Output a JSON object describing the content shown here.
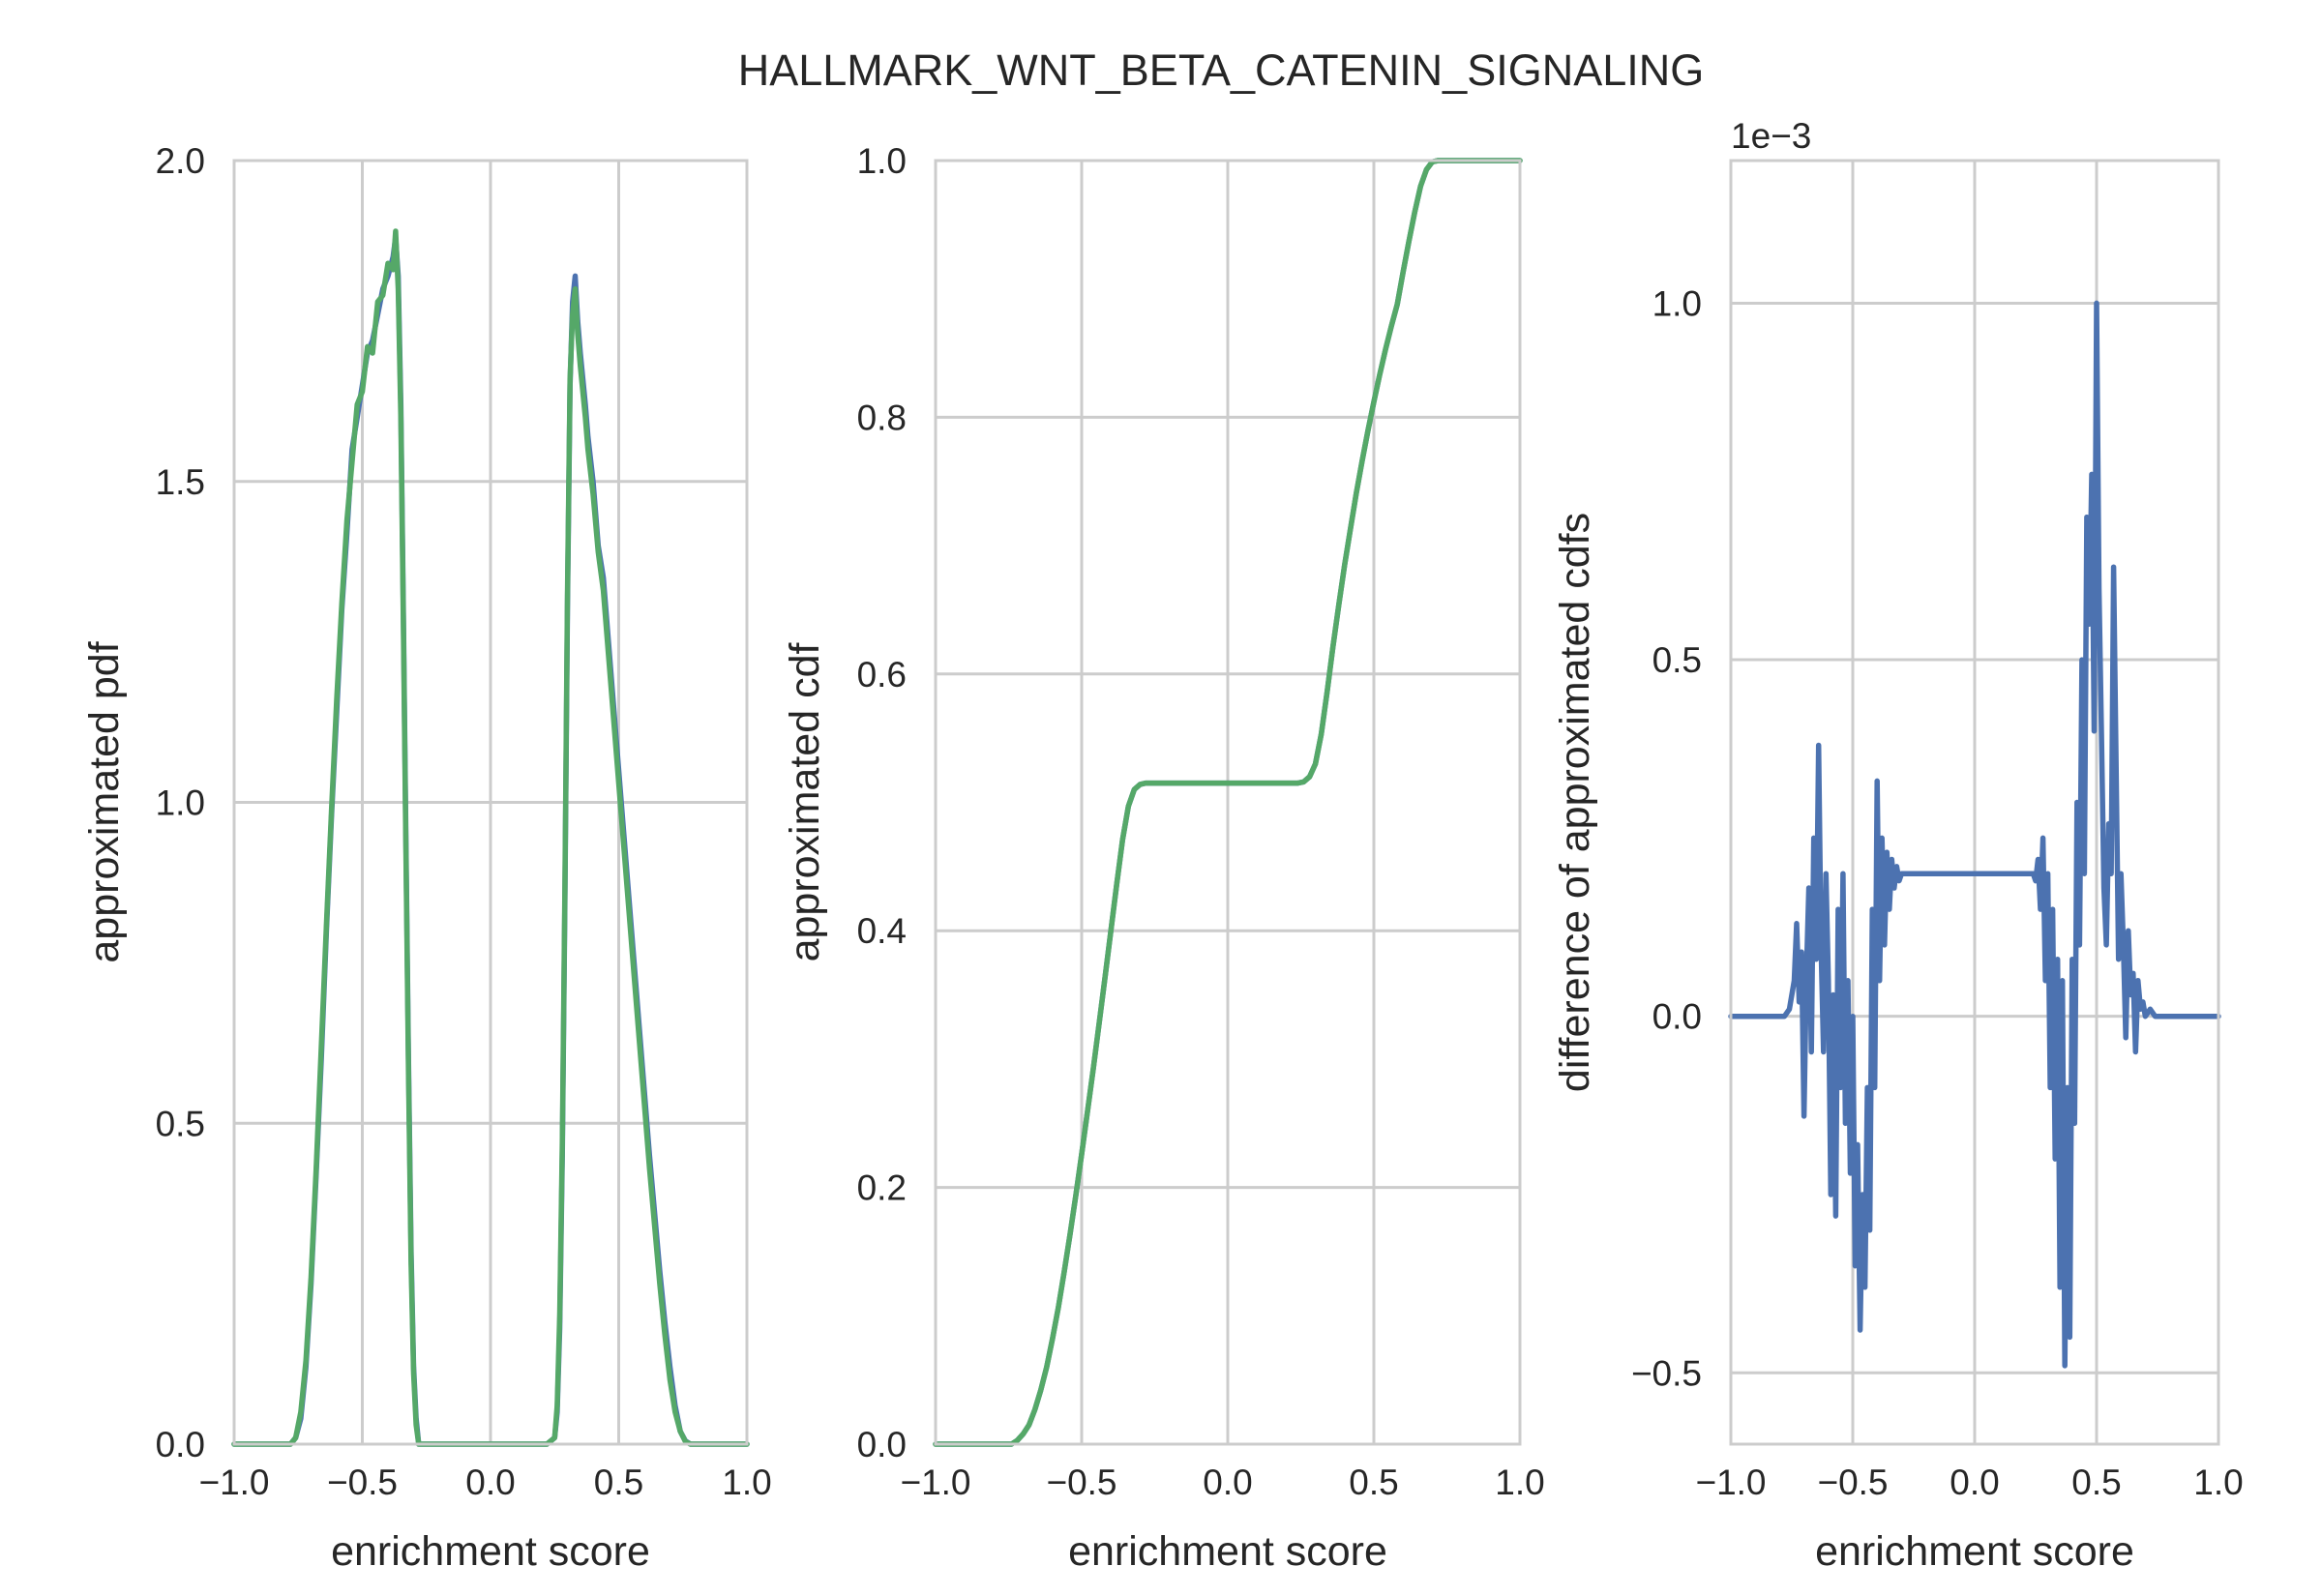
{
  "figure": {
    "title": "HALLMARK_WNT_BETA_CATENIN_SIGNALING"
  },
  "colors": {
    "blue": "#4c72b0",
    "green": "#55a868",
    "grid": "#cccccc",
    "text": "#262626"
  },
  "chart_data": [
    {
      "type": "line",
      "xlabel": "enrichment score",
      "ylabel": "approximated pdf",
      "xlim": [
        -1.0,
        1.0
      ],
      "ylim": [
        0.0,
        2.0
      ],
      "xticks": [
        -1.0,
        -0.5,
        0.0,
        0.5,
        1.0
      ],
      "xtick_labels": [
        "−1.0",
        "−0.5",
        "0.0",
        "0.5",
        "1.0"
      ],
      "yticks": [
        0.0,
        0.5,
        1.0,
        1.5,
        2.0
      ],
      "ytick_labels": [
        "0.0",
        "0.5",
        "1.0",
        "1.5",
        "2.0"
      ],
      "grid": true,
      "series": [
        {
          "color": "#4c72b0",
          "x": [
            -1.0,
            -0.78,
            -0.76,
            -0.74,
            -0.72,
            -0.7,
            -0.68,
            -0.66,
            -0.64,
            -0.62,
            -0.6,
            -0.58,
            -0.56,
            -0.54,
            -0.52,
            -0.5,
            -0.48,
            -0.46,
            -0.44,
            -0.42,
            -0.4,
            -0.38,
            -0.37,
            -0.36,
            -0.35,
            -0.34,
            -0.33,
            -0.32,
            -0.31,
            -0.3,
            -0.29,
            -0.28,
            -0.27,
            -0.26,
            -0.25,
            -0.22,
            0.0,
            0.22,
            0.25,
            0.26,
            0.27,
            0.28,
            0.29,
            0.3,
            0.31,
            0.32,
            0.33,
            0.34,
            0.35,
            0.36,
            0.37,
            0.38,
            0.4,
            0.42,
            0.44,
            0.46,
            0.48,
            0.5,
            0.52,
            0.54,
            0.56,
            0.58,
            0.6,
            0.62,
            0.64,
            0.66,
            0.68,
            0.7,
            0.72,
            0.74,
            0.76,
            0.78,
            1.0
          ],
          "y": [
            0.0,
            0.0,
            0.01,
            0.04,
            0.12,
            0.25,
            0.42,
            0.6,
            0.8,
            0.98,
            1.14,
            1.3,
            1.42,
            1.55,
            1.6,
            1.65,
            1.7,
            1.72,
            1.76,
            1.8,
            1.82,
            1.85,
            1.88,
            1.82,
            1.62,
            1.3,
            0.95,
            0.6,
            0.3,
            0.12,
            0.04,
            0.0,
            0.0,
            0.0,
            0.0,
            0.0,
            0.0,
            0.0,
            0.01,
            0.05,
            0.18,
            0.45,
            0.85,
            1.3,
            1.65,
            1.78,
            1.82,
            1.75,
            1.7,
            1.66,
            1.62,
            1.57,
            1.5,
            1.4,
            1.35,
            1.25,
            1.15,
            1.05,
            0.95,
            0.85,
            0.75,
            0.65,
            0.55,
            0.45,
            0.36,
            0.27,
            0.19,
            0.12,
            0.06,
            0.02,
            0.005,
            0.0,
            0.0
          ]
        },
        {
          "color": "#55a868",
          "x": [
            -1.0,
            -0.78,
            -0.76,
            -0.74,
            -0.72,
            -0.7,
            -0.68,
            -0.66,
            -0.64,
            -0.62,
            -0.6,
            -0.58,
            -0.56,
            -0.54,
            -0.52,
            -0.5,
            -0.48,
            -0.46,
            -0.44,
            -0.42,
            -0.4,
            -0.38,
            -0.37,
            -0.36,
            -0.35,
            -0.34,
            -0.33,
            -0.32,
            -0.31,
            -0.3,
            -0.29,
            -0.28,
            -0.27,
            -0.26,
            -0.25,
            -0.22,
            0.0,
            0.22,
            0.25,
            0.26,
            0.27,
            0.28,
            0.29,
            0.3,
            0.31,
            0.32,
            0.33,
            0.34,
            0.35,
            0.36,
            0.37,
            0.38,
            0.4,
            0.42,
            0.44,
            0.46,
            0.48,
            0.5,
            0.52,
            0.54,
            0.56,
            0.58,
            0.6,
            0.62,
            0.64,
            0.66,
            0.68,
            0.7,
            0.72,
            0.74,
            0.76,
            0.78,
            1.0
          ],
          "y": [
            0.0,
            0.0,
            0.01,
            0.05,
            0.13,
            0.26,
            0.43,
            0.62,
            0.81,
            0.99,
            1.16,
            1.31,
            1.44,
            1.53,
            1.62,
            1.64,
            1.71,
            1.7,
            1.78,
            1.79,
            1.84,
            1.83,
            1.89,
            1.8,
            1.6,
            1.28,
            0.93,
            0.58,
            0.28,
            0.11,
            0.03,
            0.0,
            0.0,
            0.0,
            0.0,
            0.0,
            0.0,
            0.0,
            0.01,
            0.06,
            0.2,
            0.47,
            0.87,
            1.32,
            1.66,
            1.76,
            1.8,
            1.73,
            1.68,
            1.64,
            1.6,
            1.55,
            1.48,
            1.39,
            1.33,
            1.23,
            1.13,
            1.03,
            0.93,
            0.83,
            0.73,
            0.63,
            0.53,
            0.43,
            0.34,
            0.25,
            0.17,
            0.1,
            0.05,
            0.02,
            0.004,
            0.0,
            0.0
          ]
        }
      ]
    },
    {
      "type": "line",
      "xlabel": "enrichment score",
      "ylabel": "approximated cdf",
      "xlim": [
        -1.0,
        1.0
      ],
      "ylim": [
        0.0,
        1.0
      ],
      "xticks": [
        -1.0,
        -0.5,
        0.0,
        0.5,
        1.0
      ],
      "xtick_labels": [
        "−1.0",
        "−0.5",
        "0.0",
        "0.5",
        "1.0"
      ],
      "yticks": [
        0.0,
        0.2,
        0.4,
        0.6,
        0.8,
        1.0
      ],
      "ytick_labels": [
        "0.0",
        "0.2",
        "0.4",
        "0.6",
        "0.8",
        "1.0"
      ],
      "grid": true,
      "series": [
        {
          "color": "#4c72b0",
          "x": [
            -1.0,
            -0.74,
            -0.72,
            -0.7,
            -0.68,
            -0.66,
            -0.64,
            -0.62,
            -0.6,
            -0.58,
            -0.56,
            -0.54,
            -0.52,
            -0.5,
            -0.48,
            -0.46,
            -0.44,
            -0.42,
            -0.4,
            -0.38,
            -0.36,
            -0.34,
            -0.32,
            -0.3,
            -0.28,
            -0.26,
            -0.24,
            0.0,
            0.24,
            0.26,
            0.28,
            0.3,
            0.32,
            0.34,
            0.36,
            0.38,
            0.4,
            0.42,
            0.44,
            0.46,
            0.48,
            0.5,
            0.52,
            0.54,
            0.56,
            0.58,
            0.6,
            0.62,
            0.64,
            0.66,
            0.68,
            0.7,
            0.72,
            1.0
          ],
          "y": [
            0.0,
            0.0,
            0.003,
            0.008,
            0.015,
            0.027,
            0.042,
            0.06,
            0.082,
            0.106,
            0.134,
            0.163,
            0.194,
            0.226,
            0.259,
            0.293,
            0.328,
            0.364,
            0.4,
            0.436,
            0.471,
            0.497,
            0.51,
            0.514,
            0.515,
            0.515,
            0.515,
            0.515,
            0.515,
            0.516,
            0.52,
            0.53,
            0.553,
            0.586,
            0.621,
            0.654,
            0.685,
            0.713,
            0.741,
            0.766,
            0.79,
            0.812,
            0.833,
            0.853,
            0.871,
            0.888,
            0.913,
            0.937,
            0.96,
            0.98,
            0.993,
            0.999,
            1.0,
            1.0
          ]
        },
        {
          "color": "#55a868",
          "x": [
            -1.0,
            -0.74,
            -0.72,
            -0.7,
            -0.68,
            -0.66,
            -0.64,
            -0.62,
            -0.6,
            -0.58,
            -0.56,
            -0.54,
            -0.52,
            -0.5,
            -0.48,
            -0.46,
            -0.44,
            -0.42,
            -0.4,
            -0.38,
            -0.36,
            -0.34,
            -0.32,
            -0.3,
            -0.28,
            -0.26,
            -0.24,
            0.0,
            0.24,
            0.26,
            0.28,
            0.3,
            0.32,
            0.34,
            0.36,
            0.38,
            0.4,
            0.42,
            0.44,
            0.46,
            0.48,
            0.5,
            0.52,
            0.54,
            0.56,
            0.58,
            0.6,
            0.62,
            0.64,
            0.66,
            0.68,
            0.7,
            0.72,
            1.0
          ],
          "y": [
            0.0,
            0.0,
            0.003,
            0.008,
            0.015,
            0.027,
            0.042,
            0.06,
            0.082,
            0.106,
            0.134,
            0.163,
            0.194,
            0.226,
            0.259,
            0.293,
            0.328,
            0.364,
            0.4,
            0.436,
            0.471,
            0.497,
            0.51,
            0.514,
            0.515,
            0.515,
            0.515,
            0.515,
            0.515,
            0.516,
            0.52,
            0.53,
            0.553,
            0.586,
            0.621,
            0.654,
            0.685,
            0.713,
            0.741,
            0.766,
            0.79,
            0.812,
            0.833,
            0.853,
            0.871,
            0.888,
            0.913,
            0.937,
            0.96,
            0.98,
            0.993,
            0.999,
            1.0,
            1.0
          ]
        }
      ]
    },
    {
      "type": "line",
      "xlabel": "enrichment score",
      "ylabel": "difference of approximated cdfs",
      "offset_text": "1e−3",
      "xlim": [
        -1.0,
        1.0
      ],
      "ylim": [
        -0.6,
        1.2
      ],
      "xticks": [
        -1.0,
        -0.5,
        0.0,
        0.5,
        1.0
      ],
      "xtick_labels": [
        "−1.0",
        "−0.5",
        "0.0",
        "0.5",
        "1.0"
      ],
      "yticks": [
        -0.5,
        0.0,
        0.5,
        1.0
      ],
      "ytick_labels": [
        "−0.5",
        "0.0",
        "0.5",
        "1.0"
      ],
      "grid": true,
      "series": [
        {
          "color": "#4c72b0",
          "x": [
            -1.0,
            -0.8,
            -0.78,
            -0.76,
            -0.74,
            -0.73,
            -0.72,
            -0.71,
            -0.7,
            -0.69,
            -0.68,
            -0.67,
            -0.66,
            -0.65,
            -0.64,
            -0.63,
            -0.62,
            -0.61,
            -0.6,
            -0.59,
            -0.58,
            -0.57,
            -0.56,
            -0.55,
            -0.54,
            -0.53,
            -0.52,
            -0.51,
            -0.5,
            -0.49,
            -0.48,
            -0.47,
            -0.46,
            -0.45,
            -0.44,
            -0.43,
            -0.42,
            -0.41,
            -0.4,
            -0.39,
            -0.38,
            -0.37,
            -0.36,
            -0.35,
            -0.34,
            -0.33,
            -0.32,
            -0.31,
            -0.3,
            -0.29,
            -0.28,
            -0.27,
            -0.26,
            -0.25,
            -0.24,
            -0.2,
            0.0,
            0.2,
            0.24,
            0.25,
            0.26,
            0.27,
            0.28,
            0.29,
            0.3,
            0.31,
            0.32,
            0.33,
            0.34,
            0.35,
            0.36,
            0.37,
            0.38,
            0.39,
            0.4,
            0.41,
            0.42,
            0.43,
            0.44,
            0.45,
            0.46,
            0.47,
            0.48,
            0.49,
            0.5,
            0.51,
            0.52,
            0.53,
            0.54,
            0.55,
            0.56,
            0.57,
            0.58,
            0.59,
            0.6,
            0.61,
            0.62,
            0.63,
            0.64,
            0.65,
            0.66,
            0.67,
            0.68,
            0.69,
            0.7,
            0.72,
            0.74,
            0.76,
            0.78,
            0.8,
            1.0
          ],
          "y": [
            0.0,
            0.0,
            0.0,
            0.01,
            0.05,
            0.13,
            0.02,
            0.09,
            -0.14,
            0.06,
            0.18,
            -0.05,
            0.25,
            0.08,
            0.38,
            0.1,
            -0.05,
            0.2,
            0.05,
            -0.25,
            0.03,
            -0.28,
            0.15,
            -0.1,
            0.2,
            -0.15,
            0.05,
            -0.22,
            0.0,
            -0.35,
            -0.18,
            -0.44,
            -0.25,
            -0.38,
            -0.1,
            -0.3,
            0.15,
            -0.1,
            0.33,
            0.05,
            0.25,
            0.1,
            0.23,
            0.15,
            0.22,
            0.18,
            0.21,
            0.19,
            0.2,
            0.2,
            0.2,
            0.2,
            0.2,
            0.2,
            0.2,
            0.2,
            0.2,
            0.2,
            0.2,
            0.19,
            0.22,
            0.15,
            0.25,
            0.05,
            0.2,
            -0.1,
            0.15,
            -0.2,
            0.08,
            -0.38,
            0.05,
            -0.49,
            -0.1,
            -0.45,
            0.08,
            -0.15,
            0.3,
            0.1,
            0.5,
            0.2,
            0.7,
            0.55,
            0.76,
            0.4,
            1.0,
            0.6,
            0.4,
            0.18,
            0.1,
            0.27,
            0.2,
            0.63,
            0.35,
            0.08,
            0.2,
            0.1,
            -0.03,
            0.12,
            0.03,
            0.06,
            -0.05,
            0.05,
            0.01,
            0.02,
            0.0,
            0.01,
            0.0,
            0.0,
            0.0,
            0.0,
            0.0
          ]
        }
      ]
    }
  ]
}
